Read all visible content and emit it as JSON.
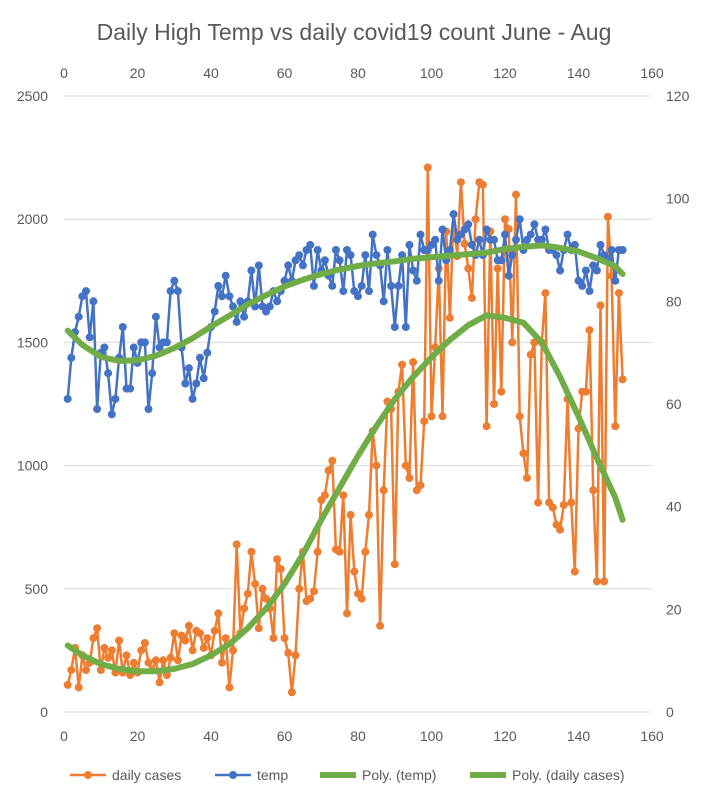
{
  "chart_data": {
    "type": "line",
    "title": "Daily High Temp vs daily covid19 count June - Aug",
    "x_axis": {
      "min": 0,
      "max": 160,
      "ticks": [
        "0",
        "20",
        "40",
        "60",
        "80",
        "100",
        "120",
        "140",
        "160"
      ]
    },
    "y_left": {
      "min": 0,
      "max": 2500,
      "ticks": [
        "0",
        "500",
        "1000",
        "1500",
        "2000",
        "2500"
      ]
    },
    "y_right": {
      "min": 0,
      "max": 120,
      "ticks": [
        "0",
        "20",
        "40",
        "60",
        "80",
        "100",
        "120"
      ]
    },
    "grid": "horizontal",
    "legend_position": "bottom",
    "colors": {
      "daily_cases": "#ED7D31",
      "temp": "#4472C4",
      "trend": "#70AD47",
      "grid": "#D9D9D9",
      "text": "#595959"
    },
    "series": [
      {
        "name": "daily cases",
        "axis": "left",
        "kind": "line-markers",
        "color": "#ED7D31",
        "x": [
          1,
          2,
          3,
          4,
          5,
          6,
          7,
          8,
          9,
          10,
          11,
          12,
          13,
          14,
          15,
          16,
          17,
          18,
          19,
          20,
          21,
          22,
          23,
          24,
          25,
          26,
          27,
          28,
          29,
          30,
          31,
          32,
          33,
          34,
          35,
          36,
          37,
          38,
          39,
          40,
          41,
          42,
          43,
          44,
          45,
          46,
          47,
          48,
          49,
          50,
          51,
          52,
          53,
          54,
          55,
          56,
          57,
          58,
          59,
          60,
          61,
          62,
          63,
          64,
          65,
          66,
          67,
          68,
          69,
          70,
          71,
          72,
          73,
          74,
          75,
          76,
          77,
          78,
          79,
          80,
          81,
          82,
          83,
          84,
          85,
          86,
          87,
          88,
          89,
          90,
          91,
          92,
          93,
          94,
          95,
          96,
          97,
          98,
          99,
          100,
          101,
          102,
          103,
          104,
          105,
          106,
          107,
          108,
          109,
          110,
          111,
          112,
          113,
          114,
          115,
          116,
          117,
          118,
          119,
          120,
          121,
          122,
          123,
          124,
          125,
          126,
          127,
          128,
          129,
          130,
          131,
          132,
          133,
          134,
          135,
          136,
          137,
          138,
          139,
          140,
          141,
          142,
          143,
          144,
          145,
          146,
          147,
          148,
          149,
          150,
          151,
          152
        ],
        "y": [
          110,
          170,
          260,
          100,
          230,
          170,
          200,
          300,
          340,
          170,
          260,
          220,
          250,
          160,
          290,
          160,
          230,
          150,
          200,
          160,
          250,
          280,
          200,
          170,
          210,
          120,
          210,
          150,
          220,
          320,
          210,
          310,
          290,
          350,
          250,
          330,
          320,
          260,
          300,
          230,
          330,
          400,
          200,
          300,
          100,
          250,
          680,
          320,
          420,
          480,
          650,
          520,
          340,
          500,
          460,
          420,
          300,
          620,
          580,
          300,
          240,
          80,
          230,
          500,
          650,
          450,
          460,
          490,
          650,
          860,
          880,
          980,
          1020,
          660,
          650,
          880,
          400,
          800,
          570,
          480,
          460,
          650,
          800,
          1140,
          1000,
          350,
          900,
          1260,
          1230,
          600,
          1300,
          1410,
          1000,
          950,
          1420,
          900,
          920,
          1180,
          2210,
          1200,
          1480,
          1800,
          1200,
          1950,
          1600,
          2020,
          1850,
          2150,
          1900,
          1800,
          1680,
          2000,
          2150,
          2140,
          1160,
          1950,
          1250,
          1800,
          1300,
          2000,
          1960,
          1500,
          2100,
          1200,
          1050,
          950,
          1450,
          1500,
          850,
          1500,
          1700,
          850,
          830,
          760,
          740,
          840,
          1270,
          850,
          570,
          1150,
          1300,
          1300,
          1550,
          900,
          530,
          1650,
          530,
          2010,
          1770,
          1160,
          1700,
          1350
        ]
      },
      {
        "name": "temp",
        "axis": "right",
        "kind": "line-markers",
        "color": "#4472C4",
        "x": [
          1,
          2,
          3,
          4,
          5,
          6,
          7,
          8,
          9,
          10,
          11,
          12,
          13,
          14,
          15,
          16,
          17,
          18,
          19,
          20,
          21,
          22,
          23,
          24,
          25,
          26,
          27,
          28,
          29,
          30,
          31,
          32,
          33,
          34,
          35,
          36,
          37,
          38,
          39,
          40,
          41,
          42,
          43,
          44,
          45,
          46,
          47,
          48,
          49,
          50,
          51,
          52,
          53,
          54,
          55,
          56,
          57,
          58,
          59,
          60,
          61,
          62,
          63,
          64,
          65,
          66,
          67,
          68,
          69,
          70,
          71,
          72,
          73,
          74,
          75,
          76,
          77,
          78,
          79,
          80,
          81,
          82,
          83,
          84,
          85,
          86,
          87,
          88,
          89,
          90,
          91,
          92,
          93,
          94,
          95,
          96,
          97,
          98,
          99,
          100,
          101,
          102,
          103,
          104,
          105,
          106,
          107,
          108,
          109,
          110,
          111,
          112,
          113,
          114,
          115,
          116,
          117,
          118,
          119,
          120,
          121,
          122,
          123,
          124,
          125,
          126,
          127,
          128,
          129,
          130,
          131,
          132,
          133,
          134,
          135,
          136,
          137,
          138,
          139,
          140,
          141,
          142,
          143,
          144,
          145,
          146,
          147,
          148,
          149,
          150,
          151,
          152
        ],
        "y": [
          61,
          69,
          74,
          77,
          81,
          82,
          73,
          80,
          59,
          70,
          71,
          66,
          58,
          61,
          69,
          75,
          63,
          63,
          71,
          68,
          72,
          72,
          59,
          66,
          77,
          71,
          72,
          72,
          82,
          84,
          82,
          71,
          64,
          67,
          61,
          64,
          69,
          65,
          70,
          75,
          78,
          83,
          81,
          85,
          81,
          79,
          76,
          80,
          77,
          80,
          86,
          79,
          87,
          79,
          78,
          79,
          82,
          80,
          82,
          84,
          87,
          84,
          88,
          89,
          87,
          90,
          91,
          83,
          90,
          86,
          88,
          85,
          83,
          90,
          88,
          82,
          90,
          89,
          82,
          81,
          83,
          89,
          82,
          93,
          89,
          87,
          80,
          90,
          83,
          75,
          83,
          89,
          75,
          91,
          86,
          84,
          93,
          90,
          90,
          91,
          92,
          84,
          94,
          88,
          90,
          97,
          92,
          93,
          94,
          95,
          91,
          89,
          92,
          89,
          94,
          92,
          92,
          88,
          88,
          93,
          85,
          89,
          92,
          96,
          90,
          92,
          93,
          95,
          92,
          92,
          94,
          90,
          90,
          89,
          86,
          90,
          93,
          90,
          91,
          84,
          83,
          86,
          82,
          87,
          86,
          91,
          89,
          88,
          90,
          84,
          90,
          90
        ]
      },
      {
        "name": "Poly. (temp)",
        "axis": "right",
        "kind": "trendline",
        "color": "#70AD47",
        "x": [
          1,
          5,
          10,
          15,
          20,
          25,
          30,
          35,
          40,
          45,
          50,
          55,
          60,
          65,
          70,
          75,
          80,
          85,
          90,
          95,
          100,
          105,
          110,
          115,
          120,
          125,
          130,
          135,
          140,
          145,
          150,
          152
        ],
        "y": [
          74.3,
          71.5,
          69.2,
          68.4,
          68.5,
          69.4,
          70.9,
          72.8,
          75.1,
          77.2,
          79.4,
          81.2,
          82.9,
          84.2,
          85.3,
          86.2,
          86.9,
          87.4,
          87.8,
          88.3,
          88.6,
          88.9,
          89.2,
          89.5,
          90.2,
          90.6,
          90.9,
          90.4,
          89.7,
          88.4,
          86.8,
          85.3
        ]
      },
      {
        "name": "Poly. (daily cases)",
        "axis": "left",
        "kind": "trendline",
        "color": "#70AD47",
        "x": [
          1,
          5,
          10,
          15,
          20,
          25,
          30,
          35,
          40,
          45,
          50,
          55,
          60,
          65,
          70,
          75,
          80,
          85,
          90,
          95,
          100,
          105,
          110,
          115,
          120,
          125,
          130,
          135,
          140,
          145,
          150,
          152
        ],
        "y": [
          270,
          230,
          195,
          175,
          165,
          165,
          175,
          195,
          230,
          275,
          340,
          420,
          520,
          640,
          780,
          910,
          1040,
          1160,
          1270,
          1360,
          1440,
          1510,
          1570,
          1610,
          1600,
          1580,
          1500,
          1360,
          1200,
          1030,
          870,
          780
        ]
      }
    ],
    "legend": [
      "daily cases",
      "temp",
      "Poly. (temp)",
      "Poly. (daily cases)"
    ]
  }
}
